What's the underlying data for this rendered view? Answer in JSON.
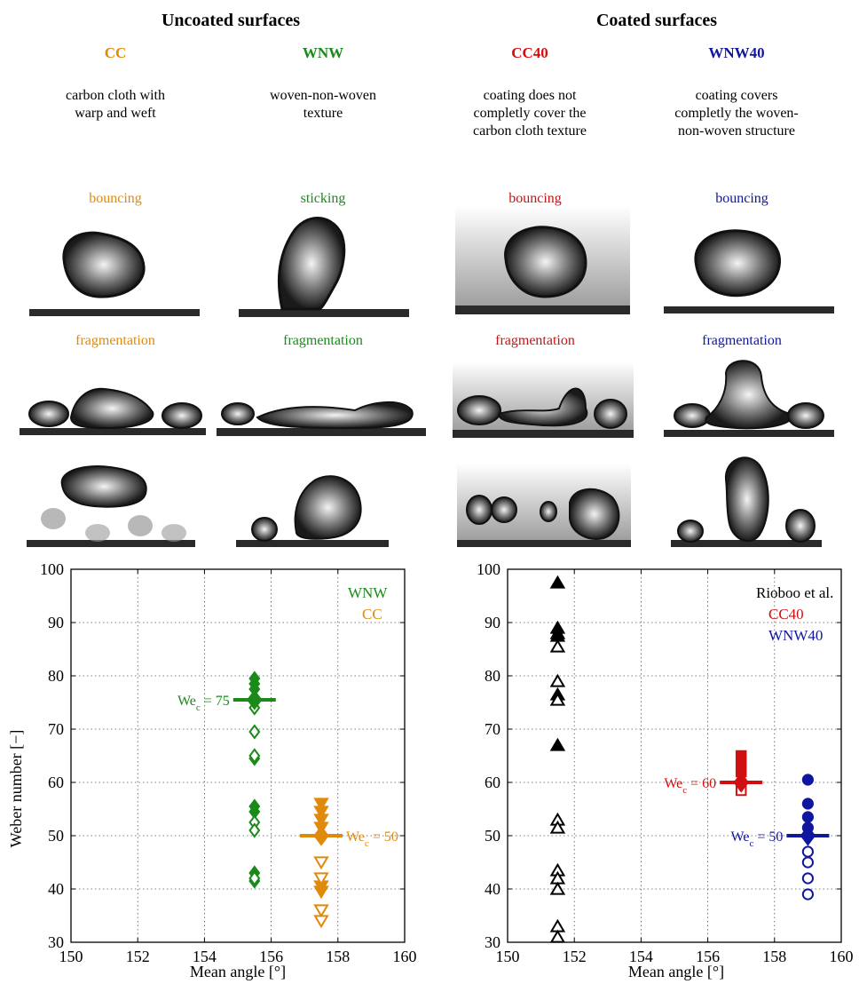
{
  "header": {
    "uncoated_title": "Uncoated surfaces",
    "coated_title": "Coated surfaces"
  },
  "columns": [
    {
      "name": "CC",
      "color": "#e08a0c",
      "description": "carbon cloth with\nwarp and weft",
      "state1": "bouncing",
      "state2": "fragmentation"
    },
    {
      "name": "WNW",
      "color": "#1a8a1a",
      "description": "woven-non-woven\ntexture",
      "state1": "sticking",
      "state2": "fragmentation"
    },
    {
      "name": "CC40",
      "color": "#d01010",
      "description": "coating does not\ncompletly cover  the\ncarbon cloth texture",
      "state1": "bouncing",
      "state2": "fragmentation"
    },
    {
      "name": "WNW40",
      "color": "#10169e",
      "description": "coating covers\ncompletly the woven-\nnon-woven structure",
      "state1": "bouncing",
      "state2": "fragmentation"
    }
  ],
  "chart_data": [
    {
      "type": "scatter",
      "xlabel": "Mean angle [°]",
      "ylabel": "Weber number [−]",
      "xlim": [
        150,
        160
      ],
      "ylim": [
        30,
        100
      ],
      "xticks": [
        "150",
        "152",
        "154",
        "156",
        "158",
        "160"
      ],
      "yticks": [
        "30",
        "40",
        "50",
        "60",
        "70",
        "80",
        "90",
        "100"
      ],
      "grid": true,
      "legend_position": "top-right",
      "series": [
        {
          "name": "WNW",
          "color": "#1a8a1a",
          "marker": "diamond",
          "filled": [
            {
              "x": 155.5,
              "y": 79.5
            },
            {
              "x": 155.5,
              "y": 78.5
            },
            {
              "x": 155.5,
              "y": 77.5
            },
            {
              "x": 155.5,
              "y": 64.5
            },
            {
              "x": 155.5,
              "y": 55.5
            },
            {
              "x": 155.5,
              "y": 54.5
            },
            {
              "x": 155.5,
              "y": 43
            },
            {
              "x": 155.5,
              "y": 41.5
            }
          ],
          "open": [
            {
              "x": 155.5,
              "y": 74
            },
            {
              "x": 155.5,
              "y": 69.5
            },
            {
              "x": 155.5,
              "y": 65
            },
            {
              "x": 155.5,
              "y": 52.5
            },
            {
              "x": 155.5,
              "y": 51
            },
            {
              "x": 155.5,
              "y": 42
            }
          ]
        },
        {
          "name": "CC",
          "color": "#e08a0c",
          "marker": "triangle-down",
          "filled": [
            {
              "x": 157.5,
              "y": 56
            },
            {
              "x": 157.5,
              "y": 54.5
            },
            {
              "x": 157.5,
              "y": 53
            },
            {
              "x": 157.5,
              "y": 51.5
            },
            {
              "x": 157.5,
              "y": 40.5
            },
            {
              "x": 157.5,
              "y": 39.5
            }
          ],
          "open": [
            {
              "x": 157.5,
              "y": 45
            },
            {
              "x": 157.5,
              "y": 42
            },
            {
              "x": 157.5,
              "y": 36
            },
            {
              "x": 157.5,
              "y": 34
            }
          ]
        }
      ],
      "critical": [
        {
          "label": "We",
          "subscript": "c",
          "value_text": " = 75",
          "x": 155.5,
          "y": 75.5,
          "color": "#1a8a1a",
          "marker": "diamond",
          "label_side": "left"
        },
        {
          "label": "We",
          "subscript": "c",
          "value_text": " = 50",
          "x": 157.5,
          "y": 50,
          "color": "#e08a0c",
          "marker": "diamond",
          "label_side": "right"
        }
      ]
    },
    {
      "type": "scatter",
      "xlabel": "Mean angle [°]",
      "ylabel": "",
      "xlim": [
        150,
        160
      ],
      "ylim": [
        30,
        100
      ],
      "xticks": [
        "150",
        "152",
        "154",
        "156",
        "158",
        "160"
      ],
      "yticks": [
        "30",
        "40",
        "50",
        "60",
        "70",
        "80",
        "90",
        "100"
      ],
      "grid": true,
      "legend_position": "top-right",
      "series": [
        {
          "name": "Rioboo et al.",
          "color": "#000000",
          "marker": "triangle-up",
          "filled": [
            {
              "x": 151.5,
              "y": 97.5
            },
            {
              "x": 151.5,
              "y": 89
            },
            {
              "x": 151.5,
              "y": 88
            },
            {
              "x": 151.5,
              "y": 87.5
            },
            {
              "x": 151.5,
              "y": 76.5
            },
            {
              "x": 151.5,
              "y": 67
            }
          ],
          "open": [
            {
              "x": 151.5,
              "y": 85.5
            },
            {
              "x": 151.5,
              "y": 79
            },
            {
              "x": 151.5,
              "y": 75.5
            },
            {
              "x": 151.5,
              "y": 53
            },
            {
              "x": 151.5,
              "y": 51.5
            },
            {
              "x": 151.5,
              "y": 43.5
            },
            {
              "x": 151.5,
              "y": 42
            },
            {
              "x": 151.5,
              "y": 40
            },
            {
              "x": 151.5,
              "y": 33
            },
            {
              "x": 151.5,
              "y": 31
            }
          ]
        },
        {
          "name": "CC40",
          "color": "#d01010",
          "marker": "square",
          "filled": [
            {
              "x": 157,
              "y": 65
            },
            {
              "x": 157,
              "y": 63.5
            },
            {
              "x": 157,
              "y": 62
            }
          ],
          "open": [
            {
              "x": 157,
              "y": 58.5
            }
          ]
        },
        {
          "name": "WNW40",
          "color": "#10169e",
          "marker": "circle",
          "filled": [
            {
              "x": 159,
              "y": 60.5
            },
            {
              "x": 159,
              "y": 56
            },
            {
              "x": 159,
              "y": 53.5
            },
            {
              "x": 159,
              "y": 51.5
            }
          ],
          "open": [
            {
              "x": 159,
              "y": 47
            },
            {
              "x": 159,
              "y": 45
            },
            {
              "x": 159,
              "y": 42
            },
            {
              "x": 159,
              "y": 39
            }
          ]
        }
      ],
      "critical": [
        {
          "label": "We",
          "subscript": "c",
          "value_text": " = 60",
          "x": 157,
          "y": 60,
          "color": "#d01010",
          "marker": "diamond",
          "label_side": "left"
        },
        {
          "label": "We",
          "subscript": "c",
          "value_text": " = 50",
          "x": 159,
          "y": 50,
          "color": "#10169e",
          "marker": "diamond",
          "label_side": "left"
        }
      ]
    }
  ]
}
